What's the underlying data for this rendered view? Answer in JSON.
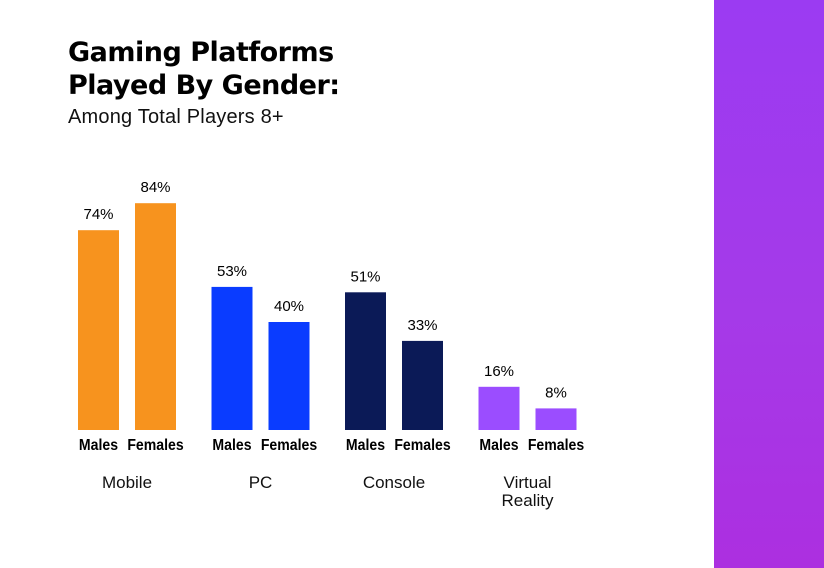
{
  "header": {
    "title_line1": "Gaming Platforms",
    "title_line2": "Played By Gender:",
    "subtitle": "Among Total Players 8+"
  },
  "colors": {
    "Mobile": "#f7931e",
    "PC": "#0a3cff",
    "Console": "#0b1a57",
    "Virtual Reality": "#9b4dff",
    "side_panel": "#a03af0"
  },
  "chart_data": {
    "type": "bar",
    "title": "Gaming Platforms Played By Gender:",
    "subtitle": "Among Total Players 8+",
    "xlabel": "",
    "ylabel": "",
    "ylim": [
      0,
      100
    ],
    "grid": false,
    "categories": [
      "Mobile",
      "PC",
      "Console",
      "Virtual Reality"
    ],
    "category_label_lines": [
      [
        "Mobile"
      ],
      [
        "PC"
      ],
      [
        "Console"
      ],
      [
        "Virtual",
        "Reality"
      ]
    ],
    "series": [
      {
        "name": "Males",
        "values": [
          74,
          53,
          51,
          16
        ]
      },
      {
        "name": "Females",
        "values": [
          84,
          40,
          33,
          8
        ]
      }
    ],
    "value_suffix": "%"
  }
}
